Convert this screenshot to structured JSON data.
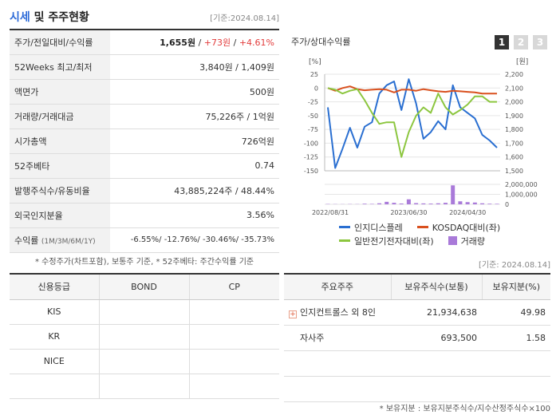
{
  "header": {
    "title_accent": "시세",
    "title_rest": " 및 주주현황",
    "date": "[기준:2024.08.14]"
  },
  "info": {
    "rows": [
      {
        "key": "주가/전일대비/수익률",
        "price": "1,655원",
        "change": "+73원",
        "rate": "+4.61%"
      },
      {
        "key": "52Weeks 최고/최저",
        "value": "3,840원 / 1,409원"
      },
      {
        "key": "액면가",
        "value": "500원"
      },
      {
        "key": "거래량/거래대금",
        "value": "75,226주 / 1억원"
      },
      {
        "key": "시가총액",
        "value": "726억원"
      },
      {
        "key": "52주베타",
        "value": "0.74"
      },
      {
        "key": "발행주식수/유동비율",
        "value": "43,885,224주 / 48.44%"
      },
      {
        "key": "외국인지분율",
        "value": "3.56%"
      },
      {
        "key": "수익률",
        "key_sub": "(1M/3M/6M/1Y)",
        "value": "-6.55%/ -12.76%/ -30.46%/ -35.73%"
      }
    ],
    "footnote": "* 수정주가(차트포함), 보통주 기준, * 52주베타: 주간수익률 기준",
    "date_bottom": "[기준: 2024.08.14]"
  },
  "chart": {
    "title": "주가/상대수익률",
    "buttons": [
      "1",
      "2",
      "3"
    ],
    "left_unit": "[%]",
    "right_unit": "[원]",
    "legend": [
      {
        "label": "인지디스플레",
        "color": "#2a6fd1"
      },
      {
        "label": "KOSDAQ대비(좌)",
        "color": "#d9501e"
      },
      {
        "label": "일반전기전자대비(좌)",
        "color": "#8cc63f"
      },
      {
        "label": "거래량",
        "color": "#a97ad9"
      }
    ]
  },
  "chart_data": {
    "type": "line",
    "x_tick_labels": [
      "2022/08/31",
      "2023/06/30",
      "2024/04/30"
    ],
    "y_left": {
      "label": "[%]",
      "ticks": [
        25,
        0,
        -25,
        -50,
        -75,
        -100,
        -125,
        -150
      ],
      "range": [
        -150,
        25
      ]
    },
    "y_right": {
      "label": "[원]",
      "ticks": [
        2200,
        2100,
        2000,
        1900,
        1800,
        1700,
        1600,
        1500
      ],
      "range": [
        1500,
        2200
      ]
    },
    "y_volume": {
      "ticks": [
        "2,000,000",
        "1,000,000",
        "0"
      ],
      "range": [
        0,
        2000000
      ]
    },
    "series": [
      {
        "name": "인지디스플레",
        "axis": "left",
        "color": "#2a6fd1",
        "values": [
          -35,
          -145,
          -110,
          -72,
          -108,
          -70,
          -62,
          -10,
          5,
          12,
          -40,
          16,
          -28,
          -92,
          -80,
          -60,
          -75,
          5,
          -35,
          -45,
          -55,
          -85,
          -95,
          -108
        ]
      },
      {
        "name": "KOSDAQ대비(좌)",
        "axis": "left",
        "color": "#d9501e",
        "values": [
          0,
          -5,
          0,
          3,
          -2,
          -4,
          -3,
          -2,
          -3,
          -8,
          -3,
          -3,
          -5,
          -2,
          -4,
          -6,
          -7,
          -5,
          -6,
          -7,
          -8,
          -10,
          -10,
          -10
        ]
      },
      {
        "name": "일반전기전자대비(좌)",
        "axis": "left",
        "color": "#8cc63f",
        "values": [
          0,
          -3,
          -10,
          -5,
          -2,
          -22,
          -45,
          -65,
          -62,
          -62,
          -125,
          -80,
          -50,
          -35,
          -45,
          -10,
          -35,
          -48,
          -40,
          -30,
          -15,
          -15,
          -25,
          -25
        ]
      },
      {
        "name": "거래량",
        "type": "bar",
        "axis": "volume",
        "color": "#a97ad9",
        "values": [
          30000,
          20000,
          15000,
          25000,
          20000,
          60000,
          40000,
          100000,
          250000,
          150000,
          80000,
          500000,
          120000,
          90000,
          70000,
          100000,
          150000,
          1900000,
          300000,
          220000,
          180000,
          100000,
          60000,
          50000
        ]
      }
    ]
  },
  "credit": {
    "headers": [
      "신용등급",
      "BOND",
      "CP"
    ],
    "rows": [
      {
        "agency": "KIS",
        "bond": "",
        "cp": ""
      },
      {
        "agency": "KR",
        "bond": "",
        "cp": ""
      },
      {
        "agency": "NICE",
        "bond": "",
        "cp": ""
      },
      {
        "agency": "",
        "bond": "",
        "cp": ""
      }
    ]
  },
  "holders": {
    "headers": [
      "주요주주",
      "보유주식수(보통)",
      "보유지분(%)"
    ],
    "rows": [
      {
        "name": "인지컨트롤스 외 8인",
        "expandable": true,
        "shares": "21,934,638",
        "pct": "49.98"
      },
      {
        "name": "자사주",
        "expandable": false,
        "shares": "693,500",
        "pct": "1.58"
      },
      {
        "name": "",
        "shares": "",
        "pct": ""
      },
      {
        "name": "",
        "shares": "",
        "pct": ""
      }
    ],
    "note": "* 보유지분 : 보유지분주식수/지수산정주식수×100"
  }
}
